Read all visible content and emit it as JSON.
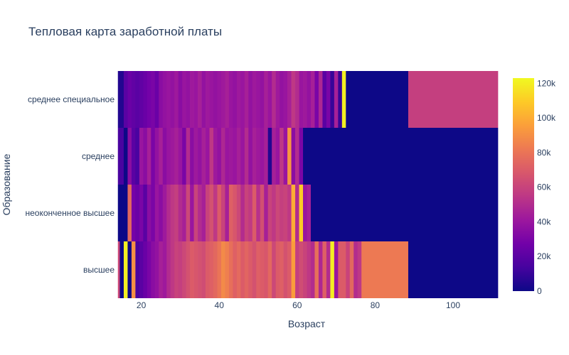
{
  "chart_data": {
    "type": "heatmap",
    "title": "Тепловая карта заработной платы",
    "xlabel": "Возраст",
    "ylabel": "Образование",
    "x_range": [
      13.5,
      111.5
    ],
    "x_ticks": [
      {
        "value": 20,
        "label": "20"
      },
      {
        "value": 40,
        "label": "40"
      },
      {
        "value": 60,
        "label": "60"
      },
      {
        "value": 80,
        "label": "80"
      },
      {
        "value": 100,
        "label": "100"
      }
    ],
    "y_categories": [
      "высшее",
      "неоконченное высшее",
      "среднее",
      "среднее специальное"
    ],
    "colorscale": [
      "#0d0887",
      "#46039f",
      "#7201a8",
      "#9c179e",
      "#bd3786",
      "#d8576b",
      "#ed7953",
      "#fb9f3a",
      "#fdca26",
      "#f0f921"
    ],
    "zmin": 0,
    "zmax": 123000,
    "colorbar_ticks": [
      {
        "value": 0,
        "label": "0"
      },
      {
        "value": 20000,
        "label": "20k"
      },
      {
        "value": 40000,
        "label": "40k"
      },
      {
        "value": 60000,
        "label": "60k"
      },
      {
        "value": 80000,
        "label": "80k"
      },
      {
        "value": 100000,
        "label": "100k"
      },
      {
        "value": 120000,
        "label": "120k"
      }
    ],
    "series": [
      {
        "category": "высшее",
        "cells": [
          [
            14,
            14.5,
            62000
          ],
          [
            14.5,
            15.5,
            0
          ],
          [
            15.5,
            16.5,
            120000
          ],
          [
            16.5,
            17.5,
            0
          ],
          [
            17.5,
            18.5,
            90000
          ],
          [
            18.5,
            19.5,
            15000
          ],
          [
            19.5,
            20.5,
            20000
          ],
          [
            20.5,
            21.5,
            25000
          ],
          [
            21.5,
            22.5,
            30000
          ],
          [
            22.5,
            23.5,
            35000
          ],
          [
            23.5,
            24.5,
            38000
          ],
          [
            24.5,
            25.5,
            45000
          ],
          [
            25.5,
            26.5,
            42000
          ],
          [
            26.5,
            27.5,
            50000
          ],
          [
            27.5,
            28.5,
            55000
          ],
          [
            28.5,
            29.5,
            60000
          ],
          [
            29.5,
            30.5,
            58000
          ],
          [
            30.5,
            31.5,
            62000
          ],
          [
            31.5,
            32.5,
            66000
          ],
          [
            32.5,
            33.5,
            70000
          ],
          [
            33.5,
            34.5,
            68000
          ],
          [
            34.5,
            35.5,
            66000
          ],
          [
            35.5,
            36.5,
            64000
          ],
          [
            36.5,
            37.5,
            70000
          ],
          [
            37.5,
            38.5,
            72000
          ],
          [
            38.5,
            39.5,
            75000
          ],
          [
            39.5,
            40.5,
            80000
          ],
          [
            40.5,
            41.5,
            88000
          ],
          [
            41.5,
            42.5,
            84000
          ],
          [
            42.5,
            43.5,
            78000
          ],
          [
            43.5,
            44.5,
            72000
          ],
          [
            44.5,
            45.5,
            76000
          ],
          [
            45.5,
            46.5,
            70000
          ],
          [
            46.5,
            47.5,
            74000
          ],
          [
            47.5,
            48.5,
            70000
          ],
          [
            48.5,
            49.5,
            66000
          ],
          [
            49.5,
            50.5,
            72000
          ],
          [
            50.5,
            51.5,
            70000
          ],
          [
            51.5,
            52.5,
            68000
          ],
          [
            52.5,
            53.5,
            75000
          ],
          [
            53.5,
            54.5,
            62000
          ],
          [
            54.5,
            55.5,
            70000
          ],
          [
            55.5,
            56.5,
            72000
          ],
          [
            56.5,
            57.5,
            66000
          ],
          [
            57.5,
            58.5,
            70000
          ],
          [
            58.5,
            59.5,
            95000
          ],
          [
            59.5,
            60.5,
            58000
          ],
          [
            60.5,
            61.5,
            64000
          ],
          [
            61.5,
            62.5,
            60000
          ],
          [
            62.5,
            63.5,
            55000
          ],
          [
            63.5,
            64.5,
            50000
          ],
          [
            64.5,
            65.5,
            78000
          ],
          [
            65.5,
            66.5,
            48000
          ],
          [
            66.5,
            67.5,
            72000
          ],
          [
            67.5,
            68.5,
            50000
          ],
          [
            68.5,
            69.5,
            120000
          ],
          [
            69.5,
            70.5,
            40000
          ],
          [
            70.5,
            71.5,
            70000
          ],
          [
            71.5,
            72.5,
            70000
          ],
          [
            72.5,
            73.5,
            60000
          ],
          [
            73.5,
            74.5,
            75000
          ],
          [
            74.5,
            75.5,
            50000
          ],
          [
            75.5,
            76.5,
            55000
          ],
          [
            76.5,
            88.5,
            82000
          ],
          [
            88.5,
            111.5,
            0
          ]
        ]
      },
      {
        "category": "неоконченное высшее",
        "cells": [
          [
            14,
            16.5,
            0
          ],
          [
            16.5,
            17.5,
            75000
          ],
          [
            17.5,
            18.5,
            28000
          ],
          [
            18.5,
            19.5,
            25000
          ],
          [
            19.5,
            20.5,
            30000
          ],
          [
            20.5,
            21.5,
            20000
          ],
          [
            21.5,
            22.5,
            35000
          ],
          [
            22.5,
            23.5,
            30000
          ],
          [
            23.5,
            24.5,
            40000
          ],
          [
            24.5,
            25.5,
            35000
          ],
          [
            25.5,
            26.5,
            42000
          ],
          [
            26.5,
            27.5,
            50000
          ],
          [
            27.5,
            28.5,
            55000
          ],
          [
            28.5,
            29.5,
            58000
          ],
          [
            29.5,
            30.5,
            50000
          ],
          [
            30.5,
            31.5,
            45000
          ],
          [
            31.5,
            32.5,
            62000
          ],
          [
            32.5,
            33.5,
            40000
          ],
          [
            33.5,
            34.5,
            60000
          ],
          [
            34.5,
            35.5,
            50000
          ],
          [
            35.5,
            36.5,
            45000
          ],
          [
            36.5,
            37.5,
            60000
          ],
          [
            37.5,
            38.5,
            66000
          ],
          [
            38.5,
            39.5,
            55000
          ],
          [
            39.5,
            40.5,
            70000
          ],
          [
            40.5,
            41.5,
            60000
          ],
          [
            41.5,
            42.5,
            45000
          ],
          [
            42.5,
            43.5,
            72000
          ],
          [
            43.5,
            44.5,
            68000
          ],
          [
            44.5,
            45.5,
            62000
          ],
          [
            45.5,
            46.5,
            50000
          ],
          [
            46.5,
            47.5,
            60000
          ],
          [
            47.5,
            48.5,
            56000
          ],
          [
            48.5,
            49.5,
            70000
          ],
          [
            49.5,
            50.5,
            52000
          ],
          [
            50.5,
            51.5,
            65000
          ],
          [
            51.5,
            52.5,
            45000
          ],
          [
            52.5,
            53.5,
            60000
          ],
          [
            53.5,
            54.5,
            55000
          ],
          [
            54.5,
            55.5,
            62000
          ],
          [
            55.5,
            56.5,
            58000
          ],
          [
            56.5,
            57.5,
            60000
          ],
          [
            57.5,
            58.5,
            55000
          ],
          [
            58.5,
            59.5,
            100000
          ],
          [
            59.5,
            60.5,
            50000
          ],
          [
            60.5,
            61.5,
            110000
          ],
          [
            61.5,
            62.5,
            40000
          ],
          [
            62.5,
            63.5,
            45000
          ],
          [
            63.5,
            111.5,
            0
          ]
        ]
      },
      {
        "category": "среднее",
        "cells": [
          [
            14,
            15.5,
            15000
          ],
          [
            15.5,
            16.5,
            0
          ],
          [
            16.5,
            17.5,
            35000
          ],
          [
            17.5,
            18.5,
            20000
          ],
          [
            18.5,
            19.5,
            15000
          ],
          [
            19.5,
            20.5,
            40000
          ],
          [
            20.5,
            21.5,
            35000
          ],
          [
            21.5,
            22.5,
            45000
          ],
          [
            22.5,
            23.5,
            30000
          ],
          [
            23.5,
            24.5,
            38000
          ],
          [
            24.5,
            25.5,
            45000
          ],
          [
            25.5,
            26.5,
            35000
          ],
          [
            26.5,
            27.5,
            40000
          ],
          [
            27.5,
            28.5,
            42000
          ],
          [
            28.5,
            29.5,
            45000
          ],
          [
            29.5,
            30.5,
            40000
          ],
          [
            30.5,
            31.5,
            30000
          ],
          [
            31.5,
            32.5,
            50000
          ],
          [
            32.5,
            33.5,
            35000
          ],
          [
            33.5,
            34.5,
            42000
          ],
          [
            34.5,
            35.5,
            38000
          ],
          [
            35.5,
            36.5,
            45000
          ],
          [
            36.5,
            37.5,
            40000
          ],
          [
            37.5,
            38.5,
            55000
          ],
          [
            38.5,
            39.5,
            42000
          ],
          [
            39.5,
            40.5,
            38000
          ],
          [
            40.5,
            41.5,
            48000
          ],
          [
            41.5,
            42.5,
            40000
          ],
          [
            42.5,
            43.5,
            42000
          ],
          [
            43.5,
            44.5,
            40000
          ],
          [
            44.5,
            45.5,
            45000
          ],
          [
            45.5,
            46.5,
            40000
          ],
          [
            46.5,
            47.5,
            50000
          ],
          [
            47.5,
            48.5,
            38000
          ],
          [
            48.5,
            49.5,
            45000
          ],
          [
            49.5,
            50.5,
            42000
          ],
          [
            50.5,
            51.5,
            40000
          ],
          [
            51.5,
            52.5,
            45000
          ],
          [
            52.5,
            53.5,
            5000
          ],
          [
            53.5,
            54.5,
            45000
          ],
          [
            54.5,
            55.5,
            40000
          ],
          [
            55.5,
            56.5,
            55000
          ],
          [
            56.5,
            57.5,
            40000
          ],
          [
            57.5,
            58.5,
            92000
          ],
          [
            58.5,
            59.5,
            35000
          ],
          [
            59.5,
            60.5,
            50000
          ],
          [
            60.5,
            61.5,
            30000
          ],
          [
            61.5,
            111.5,
            0
          ]
        ]
      },
      {
        "category": "среднее специальное",
        "cells": [
          [
            14,
            15.5,
            5000
          ],
          [
            15.5,
            16.5,
            20000
          ],
          [
            16.5,
            17.5,
            25000
          ],
          [
            17.5,
            18.5,
            22000
          ],
          [
            18.5,
            19.5,
            20000
          ],
          [
            19.5,
            20.5,
            22000
          ],
          [
            20.5,
            21.5,
            25000
          ],
          [
            21.5,
            22.5,
            28000
          ],
          [
            22.5,
            23.5,
            30000
          ],
          [
            23.5,
            24.5,
            25000
          ],
          [
            24.5,
            25.5,
            35000
          ],
          [
            25.5,
            26.5,
            38000
          ],
          [
            26.5,
            27.5,
            40000
          ],
          [
            27.5,
            28.5,
            38000
          ],
          [
            28.5,
            29.5,
            42000
          ],
          [
            29.5,
            30.5,
            35000
          ],
          [
            30.5,
            31.5,
            40000
          ],
          [
            31.5,
            32.5,
            38000
          ],
          [
            32.5,
            33.5,
            42000
          ],
          [
            33.5,
            34.5,
            40000
          ],
          [
            34.5,
            35.5,
            45000
          ],
          [
            35.5,
            36.5,
            38000
          ],
          [
            36.5,
            37.5,
            42000
          ],
          [
            37.5,
            38.5,
            40000
          ],
          [
            38.5,
            39.5,
            38000
          ],
          [
            39.5,
            40.5,
            40000
          ],
          [
            40.5,
            41.5,
            42000
          ],
          [
            41.5,
            42.5,
            45000
          ],
          [
            42.5,
            43.5,
            40000
          ],
          [
            43.5,
            44.5,
            38000
          ],
          [
            44.5,
            45.5,
            42000
          ],
          [
            45.5,
            46.5,
            40000
          ],
          [
            46.5,
            47.5,
            45000
          ],
          [
            47.5,
            48.5,
            38000
          ],
          [
            48.5,
            49.5,
            42000
          ],
          [
            49.5,
            50.5,
            40000
          ],
          [
            50.5,
            51.5,
            38000
          ],
          [
            51.5,
            52.5,
            45000
          ],
          [
            52.5,
            53.5,
            40000
          ],
          [
            53.5,
            54.5,
            50000
          ],
          [
            54.5,
            55.5,
            42000
          ],
          [
            55.5,
            56.5,
            38000
          ],
          [
            56.5,
            57.5,
            40000
          ],
          [
            57.5,
            58.5,
            45000
          ],
          [
            58.5,
            59.5,
            55000
          ],
          [
            59.5,
            60.5,
            50000
          ],
          [
            60.5,
            61.5,
            40000
          ],
          [
            61.5,
            62.5,
            42000
          ],
          [
            62.5,
            63.5,
            38000
          ],
          [
            63.5,
            64.5,
            45000
          ],
          [
            64.5,
            65.5,
            30000
          ],
          [
            65.5,
            66.5,
            48000
          ],
          [
            66.5,
            67.5,
            20000
          ],
          [
            67.5,
            68.5,
            30000
          ],
          [
            68.5,
            69.5,
            10000
          ],
          [
            69.5,
            70.5,
            45000
          ],
          [
            70.5,
            71.5,
            10000
          ],
          [
            71.5,
            72.5,
            120000
          ],
          [
            72.5,
            88.5,
            0
          ],
          [
            88.5,
            111.5,
            58000
          ]
        ]
      }
    ]
  }
}
